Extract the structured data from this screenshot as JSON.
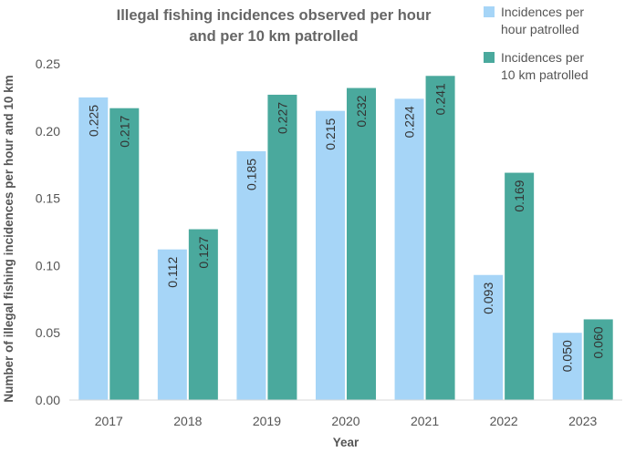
{
  "chart_data": {
    "type": "bar",
    "title": "Illegal fishing incidences observed per hour and per 10 km patrolled",
    "title_lines": [
      "Illegal fishing incidences observed per hour",
      "and per 10 km patrolled"
    ],
    "xlabel": "Year",
    "ylabel": "Number of illegal fishing incidences per hour and 10 km",
    "categories": [
      "2017",
      "2018",
      "2019",
      "2020",
      "2021",
      "2022",
      "2023"
    ],
    "ylim": [
      0,
      0.25
    ],
    "yticks": [
      "0.00",
      "0.05",
      "0.10",
      "0.15",
      "0.20",
      "0.25"
    ],
    "grid": false,
    "legend_position": "top-right",
    "series": [
      {
        "name": "Incidences per hour patrolled",
        "legend_lines": [
          "Incidences per",
          "hour patrolled"
        ],
        "color": "#A6D5F7",
        "values": [
          0.225,
          0.112,
          0.185,
          0.215,
          0.224,
          0.093,
          0.05
        ],
        "labels": [
          "0.225",
          "0.112",
          "0.185",
          "0.215",
          "0.224",
          "0.093",
          "0.050"
        ]
      },
      {
        "name": "Incidences per 10 km patrolled",
        "legend_lines": [
          "Incidences per",
          "10 km patrolled"
        ],
        "color": "#4AA99D",
        "values": [
          0.217,
          0.127,
          0.227,
          0.232,
          0.241,
          0.169,
          0.06
        ],
        "labels": [
          "0.217",
          "0.127",
          "0.227",
          "0.232",
          "0.241",
          "0.169",
          "0.060"
        ]
      }
    ]
  }
}
